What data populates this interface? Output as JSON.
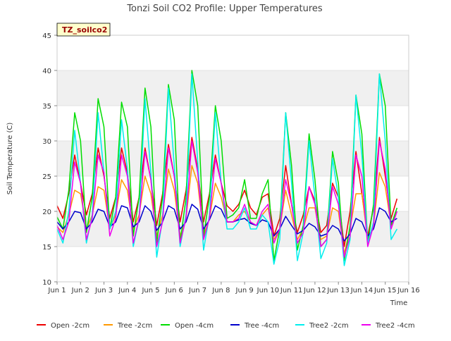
{
  "chart_data": {
    "type": "line",
    "title": "Tonzi Soil CO2 Profile: Upper Temperatures",
    "xlabel": "Time",
    "ylabel": "Soil Temperature (C)",
    "site_label": "TZ_soilco2",
    "xlim": [
      1,
      16
    ],
    "ylim": [
      10,
      45
    ],
    "x_tick_values": [
      1,
      2,
      3,
      4,
      5,
      6,
      7,
      8,
      9,
      10,
      11,
      12,
      13,
      14,
      15,
      16
    ],
    "x_tick_labels": [
      "Jun 1",
      "Jun 2",
      "Jun 3",
      "Jun 4",
      "Jun 5",
      "Jun 6",
      "Jun 7",
      "Jun 8",
      "Jun 9",
      "Jun 10",
      "Jun 11",
      "Jun 12",
      "Jun 13",
      "Jun 14",
      "Jun 15",
      "Jun 16"
    ],
    "y_ticks": [
      10,
      15,
      20,
      25,
      30,
      35,
      40,
      45
    ],
    "grid": true,
    "shaded_bands": [
      [
        15,
        20
      ],
      [
        25,
        30
      ],
      [
        35,
        40
      ]
    ],
    "legend_position": "bottom",
    "sample_x": [
      1.0,
      1.25,
      1.5,
      1.75,
      2.0,
      2.25,
      2.5,
      2.75,
      3.0,
      3.25,
      3.5,
      3.75,
      4.0,
      4.25,
      4.5,
      4.75,
      5.0,
      5.25,
      5.5,
      5.75,
      6.0,
      6.25,
      6.5,
      6.75,
      7.0,
      7.25,
      7.5,
      7.75,
      8.0,
      8.25,
      8.5,
      8.75,
      9.0,
      9.25,
      9.5,
      9.75,
      10.0,
      10.25,
      10.5,
      10.75,
      11.0,
      11.25,
      11.5,
      11.75,
      12.0,
      12.25,
      12.5,
      12.75,
      13.0,
      13.25,
      13.5,
      13.75,
      14.0,
      14.25,
      14.5,
      14.75,
      15.0,
      15.25,
      15.5
    ],
    "series": [
      {
        "name": "Open -2cm",
        "color": "#ee0000",
        "values": [
          20.8,
          19.0,
          22.5,
          28.0,
          24.0,
          19.5,
          22.5,
          29.0,
          25.0,
          19.0,
          22.0,
          29.0,
          25.5,
          18.5,
          22.0,
          29.0,
          24.5,
          18.0,
          22.5,
          29.5,
          25.0,
          18.5,
          23.0,
          30.5,
          26.0,
          18.5,
          22.5,
          28.0,
          24.0,
          20.8,
          20.0,
          21.0,
          23.0,
          20.5,
          19.5,
          22.0,
          22.5,
          16.5,
          19.0,
          26.5,
          21.0,
          17.0,
          19.5,
          23.5,
          21.5,
          17.0,
          18.0,
          24.0,
          22.0,
          15.0,
          20.0,
          28.5,
          22.5,
          16.5,
          20.5,
          30.5,
          25.0,
          19.0,
          21.8
        ]
      },
      {
        "name": "Tree -2cm",
        "color": "#ff9900",
        "values": [
          17.8,
          17.0,
          19.5,
          23.0,
          22.5,
          17.5,
          19.5,
          23.5,
          23.0,
          17.5,
          19.5,
          24.5,
          23.0,
          17.5,
          19.5,
          25.0,
          22.5,
          16.5,
          19.5,
          26.0,
          23.0,
          16.5,
          19.0,
          26.5,
          24.0,
          16.5,
          19.0,
          24.0,
          22.0,
          18.5,
          18.5,
          19.5,
          20.0,
          18.5,
          18.0,
          19.5,
          20.5,
          16.0,
          17.5,
          23.0,
          19.5,
          16.0,
          17.5,
          20.5,
          20.5,
          16.0,
          16.5,
          20.5,
          20.0,
          14.0,
          17.5,
          22.5,
          22.5,
          16.0,
          18.0,
          25.5,
          23.5,
          18.0,
          20.0
        ]
      },
      {
        "name": "Open -4cm",
        "color": "#00dd00",
        "values": [
          19.2,
          17.5,
          23.0,
          34.0,
          30.0,
          17.0,
          22.0,
          36.0,
          32.0,
          17.5,
          22.0,
          35.5,
          32.0,
          16.5,
          22.0,
          37.5,
          32.0,
          15.5,
          22.0,
          38.0,
          33.0,
          15.5,
          22.0,
          40.0,
          35.0,
          16.5,
          22.0,
          35.0,
          30.0,
          19.0,
          19.5,
          20.5,
          24.5,
          19.0,
          19.0,
          22.5,
          24.5,
          13.0,
          17.5,
          34.0,
          26.5,
          14.5,
          18.0,
          31.0,
          24.5,
          15.0,
          16.0,
          28.5,
          24.0,
          13.0,
          18.0,
          36.5,
          31.0,
          15.5,
          21.0,
          39.5,
          35.0,
          18.0,
          20.5
        ]
      },
      {
        "name": "Tree -4cm",
        "color": "#0000cc",
        "values": [
          18.5,
          17.5,
          18.5,
          20.0,
          19.8,
          17.5,
          18.5,
          20.3,
          20.0,
          17.8,
          18.5,
          20.8,
          20.5,
          17.8,
          18.5,
          20.8,
          20.0,
          17.3,
          18.5,
          20.8,
          20.3,
          17.5,
          18.5,
          21.0,
          20.3,
          17.5,
          18.8,
          20.8,
          20.3,
          18.5,
          18.5,
          18.8,
          19.0,
          18.3,
          18.0,
          18.8,
          18.5,
          16.5,
          17.5,
          19.3,
          18.0,
          16.8,
          17.3,
          18.3,
          17.8,
          16.5,
          16.8,
          18.0,
          17.5,
          15.8,
          16.8,
          19.0,
          18.5,
          16.5,
          17.5,
          20.5,
          20.0,
          18.5,
          19.0
        ]
      },
      {
        "name": "Tree2 -2cm",
        "color": "#00eeee",
        "values": [
          17.5,
          15.5,
          20.0,
          31.5,
          24.0,
          15.5,
          19.5,
          34.0,
          25.5,
          17.5,
          20.0,
          33.0,
          26.0,
          15.0,
          19.0,
          36.0,
          25.5,
          13.5,
          19.0,
          37.5,
          26.5,
          15.0,
          19.5,
          39.5,
          27.0,
          14.5,
          19.5,
          34.0,
          24.0,
          17.5,
          17.5,
          18.5,
          20.5,
          17.5,
          17.5,
          19.5,
          18.5,
          12.5,
          16.0,
          34.0,
          24.0,
          13.0,
          17.0,
          30.0,
          22.0,
          13.3,
          15.5,
          27.5,
          22.0,
          12.3,
          16.0,
          36.5,
          28.0,
          15.5,
          18.5,
          39.5,
          30.0,
          16.0,
          17.5
        ]
      },
      {
        "name": "Tree2 -4cm",
        "color": "#ee00ee",
        "values": [
          18.0,
          16.0,
          18.5,
          27.0,
          24.0,
          16.0,
          19.0,
          28.0,
          25.5,
          16.5,
          19.0,
          28.0,
          25.0,
          15.5,
          19.0,
          28.5,
          24.5,
          15.0,
          18.5,
          29.0,
          25.0,
          15.5,
          19.0,
          30.0,
          25.5,
          16.0,
          19.0,
          27.5,
          24.0,
          18.5,
          18.5,
          19.0,
          21.0,
          18.5,
          18.0,
          20.0,
          21.0,
          15.5,
          17.5,
          24.5,
          21.0,
          15.5,
          17.0,
          23.5,
          21.0,
          15.0,
          16.0,
          23.5,
          21.0,
          13.5,
          16.5,
          28.0,
          25.0,
          15.0,
          18.0,
          30.0,
          26.0,
          17.5,
          20.0
        ]
      }
    ]
  }
}
